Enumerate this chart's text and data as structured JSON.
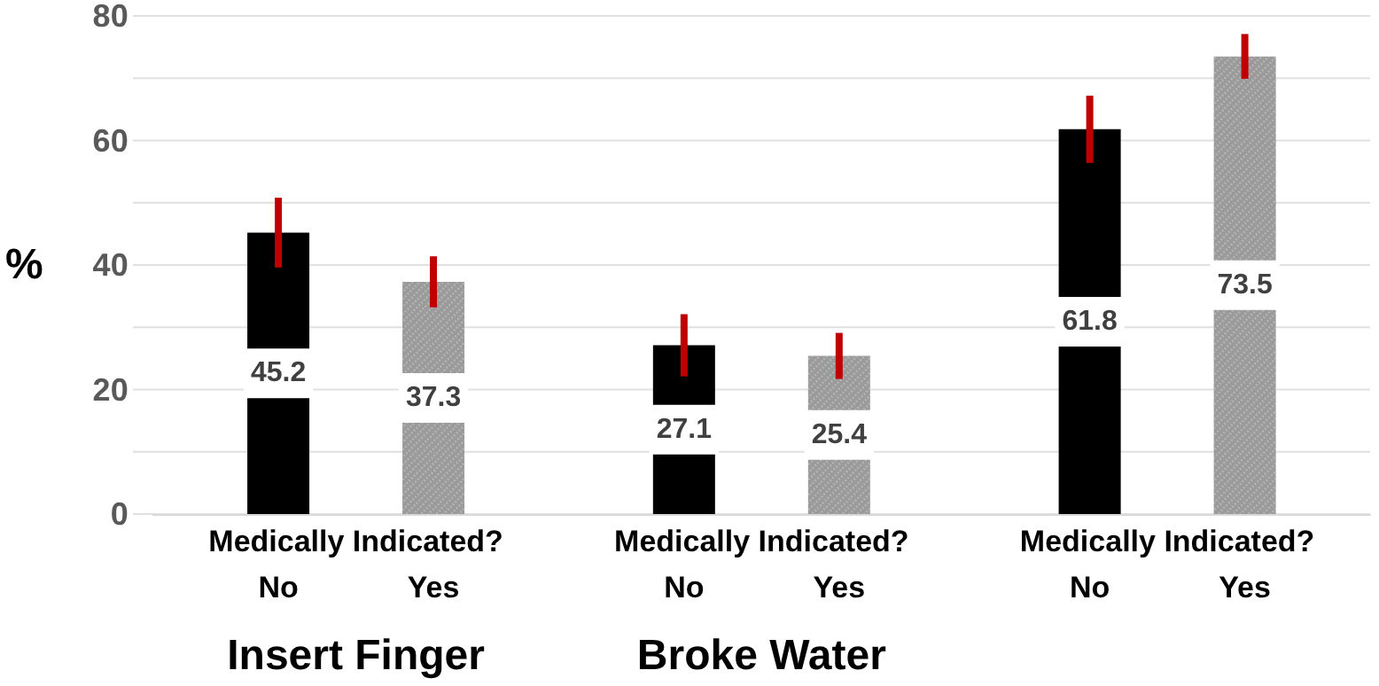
{
  "chart_data": {
    "type": "bar",
    "categories": [
      "Insert Finger",
      "Broke Water",
      null
    ],
    "series": [
      {
        "name": "No",
        "color": "#000000",
        "values": [
          45.2,
          27.1,
          61.8
        ],
        "errors": [
          5.6,
          5.0,
          5.4
        ]
      },
      {
        "name": "Yes",
        "color": "#9a9a9a",
        "values": [
          37.3,
          25.4,
          73.5
        ],
        "errors": [
          4.1,
          3.7,
          3.6
        ]
      }
    ],
    "annotations": [
      "Medically Indicated?",
      "Medically Indicated?",
      "Medically Indicated?"
    ],
    "ylabel": "%",
    "ylim": [
      0,
      80
    ],
    "yticks": [
      0,
      {
        "value": 10,
        "label": null
      },
      20,
      {
        "value": 30,
        "label": null
      },
      40,
      {
        "value": 50,
        "label": null
      },
      60,
      {
        "value": 70,
        "label": null
      },
      80
    ],
    "grid": "y",
    "data_labels": true,
    "legend": false
  }
}
